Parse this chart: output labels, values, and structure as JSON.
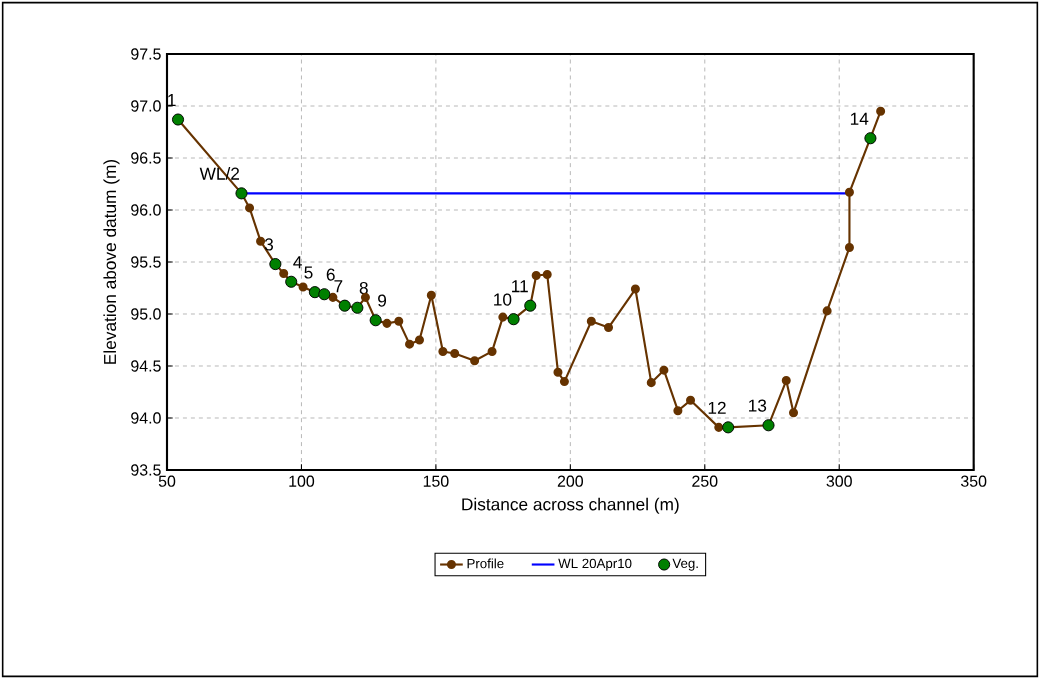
{
  "chart_data": {
    "type": "line",
    "xlabel": "Distance across channel (m)",
    "ylabel": "Elevation above datum (m)",
    "xlim": [
      50,
      350
    ],
    "xticks": [
      50,
      100,
      150,
      200,
      250,
      300,
      350
    ],
    "ylim": [
      93.5,
      97.5
    ],
    "yticks": [
      93.5,
      {
        "value": 94,
        "label": "94.0"
      },
      94.5,
      {
        "value": 95,
        "label": "95.0"
      },
      95.5,
      {
        "value": 96,
        "label": "96.0"
      },
      96.5,
      {
        "value": 97,
        "label": "97.0"
      },
      97.5
    ],
    "grid": true,
    "legend": "bottom",
    "series": [
      {
        "name": "Profile",
        "color": "#663300",
        "marker": "circle",
        "x": [
          54.1,
          77.7,
          80.7,
          84.8,
          90.3,
          93.4,
          96.2,
          100.6,
          105.0,
          108.5,
          111.7,
          116.1,
          120.8,
          123.8,
          127.6,
          131.8,
          136.2,
          140.2,
          143.9,
          148.3,
          152.6,
          157.0,
          164.4,
          170.9,
          174.9,
          178.9,
          185.1,
          187.3,
          191.4,
          195.4,
          197.8,
          207.8,
          214.2,
          224.2,
          230.1,
          234.8,
          240.0,
          244.7,
          255.2,
          258.7,
          273.7,
          280.3,
          283.0,
          295.5,
          303.8,
          303.8,
          311.6,
          315.4
        ],
        "values": [
          96.87,
          96.16,
          96.02,
          95.7,
          95.48,
          95.39,
          95.31,
          95.26,
          95.21,
          95.19,
          95.16,
          95.08,
          95.06,
          95.16,
          94.94,
          94.91,
          94.93,
          94.71,
          94.75,
          95.18,
          94.64,
          94.62,
          94.55,
          94.64,
          94.97,
          94.95,
          95.08,
          95.37,
          95.38,
          94.44,
          94.35,
          94.93,
          94.87,
          95.24,
          94.34,
          94.46,
          94.07,
          94.17,
          93.91,
          93.91,
          93.93,
          94.36,
          94.05,
          95.03,
          95.64,
          96.17,
          96.69,
          96.95
        ]
      },
      {
        "name": "WL 20Apr10",
        "color": "#0000ff",
        "marker": "none",
        "x": [
          77.7,
          303.8
        ],
        "values": [
          96.16,
          96.16
        ]
      },
      {
        "name": "Veg.",
        "type": "scatter",
        "color": "#008000",
        "marker": "circle",
        "x": [
          54.1,
          77.7,
          90.3,
          96.2,
          105.0,
          108.5,
          116.1,
          120.8,
          127.6,
          178.9,
          185.1,
          258.7,
          273.7,
          311.6
        ],
        "values": [
          96.87,
          96.16,
          95.48,
          95.31,
          95.21,
          95.19,
          95.08,
          95.06,
          94.94,
          94.95,
          95.08,
          93.91,
          93.93,
          96.69
        ]
      }
    ],
    "annotations": [
      {
        "text": "1",
        "x": 54.1,
        "y": 96.87
      },
      {
        "text": "WL/2",
        "x": 77.7,
        "y": 96.16
      },
      {
        "text": "3",
        "x": 90.3,
        "y": 95.48
      },
      {
        "text": "4",
        "x": 96.2,
        "y": 95.31
      },
      {
        "text": "5",
        "x": 105.0,
        "y": 95.21
      },
      {
        "text": "6",
        "x": 108.5,
        "y": 95.19
      },
      {
        "text": "7",
        "x": 116.1,
        "y": 95.08
      },
      {
        "text": "8",
        "x": 120.8,
        "y": 95.06
      },
      {
        "text": "9",
        "x": 127.6,
        "y": 94.94
      },
      {
        "text": "10",
        "x": 178.9,
        "y": 94.95
      },
      {
        "text": "11",
        "x": 185.1,
        "y": 95.08
      },
      {
        "text": "12",
        "x": 258.7,
        "y": 93.91
      },
      {
        "text": "13",
        "x": 273.7,
        "y": 93.93
      },
      {
        "text": "14",
        "x": 311.6,
        "y": 96.69
      }
    ]
  }
}
